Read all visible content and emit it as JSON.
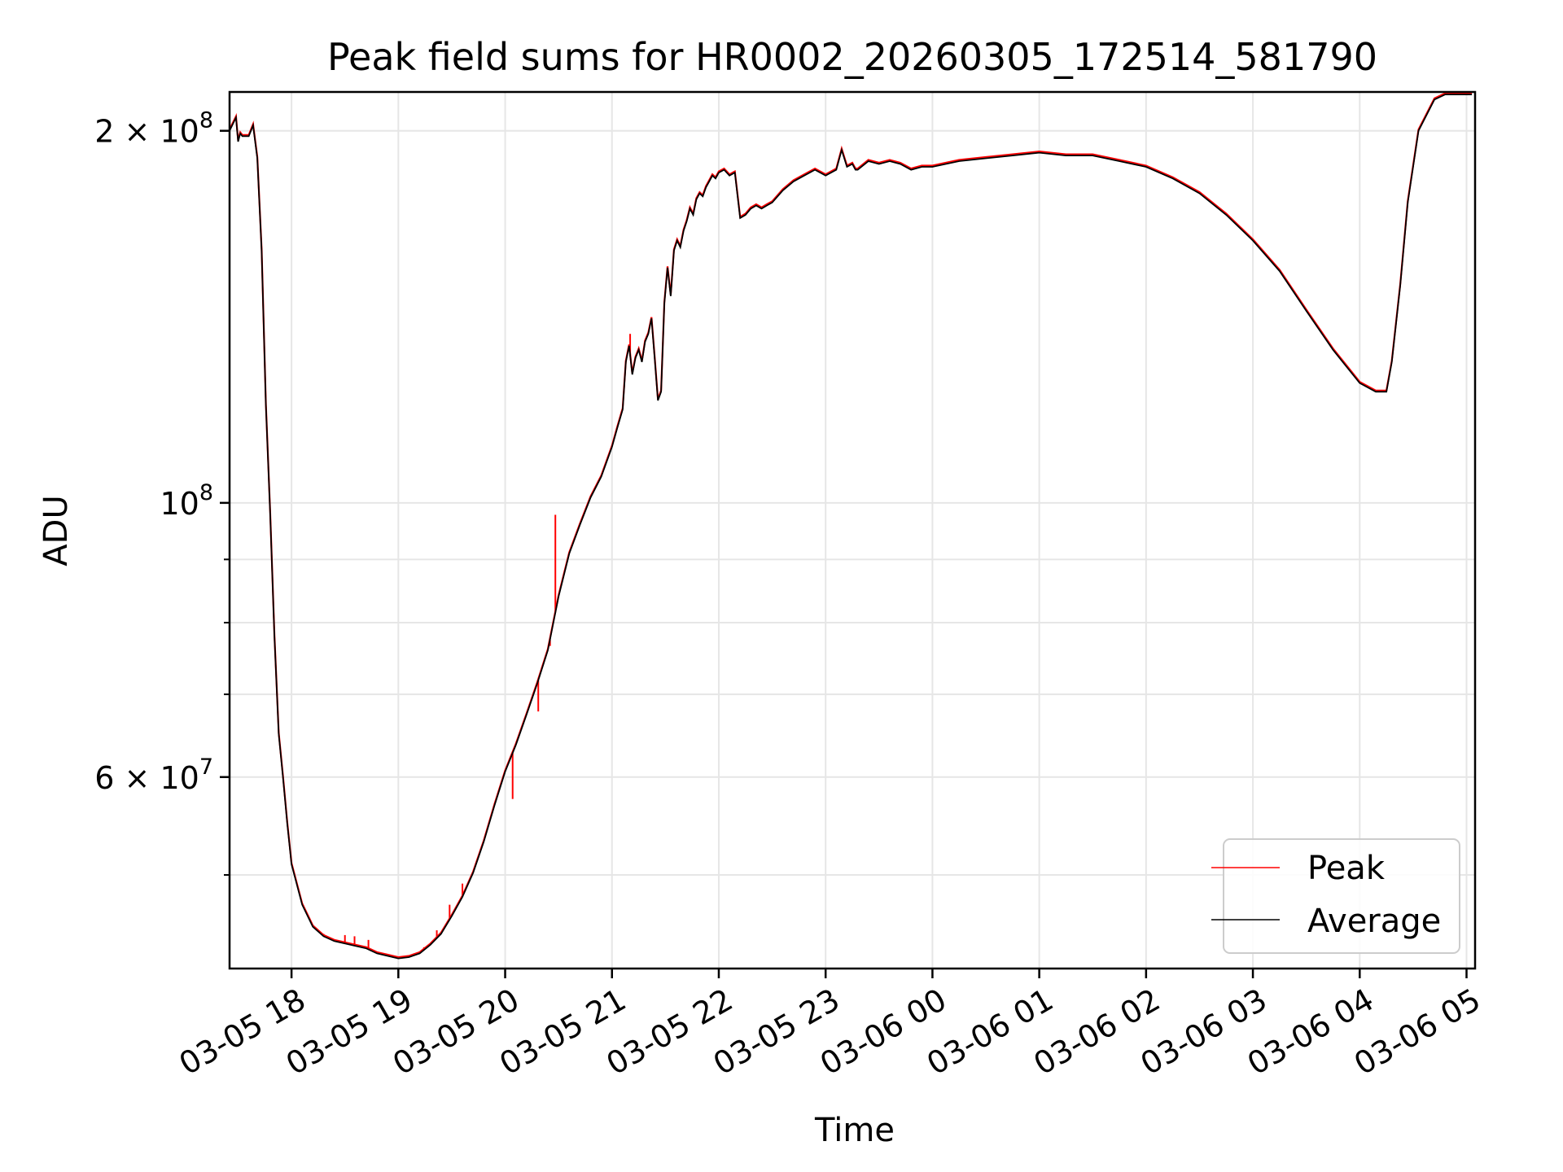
{
  "chart_data": {
    "type": "line",
    "title": "Peak field sums for HR0002_20260305_172514_581790",
    "xlabel": "Time",
    "ylabel": "ADU",
    "yscale": "log",
    "ylim": [
      42000000,
      215000000
    ],
    "xlim_hours": [
      -0.58,
      11.08
    ],
    "x_ref": "03-05 18:00",
    "grid": true,
    "legend_position": "lower-right",
    "xticks": [
      {
        "h": 0,
        "label": "03-05 18"
      },
      {
        "h": 1,
        "label": "03-05 19"
      },
      {
        "h": 2,
        "label": "03-05 20"
      },
      {
        "h": 3,
        "label": "03-05 21"
      },
      {
        "h": 4,
        "label": "03-05 22"
      },
      {
        "h": 5,
        "label": "03-05 23"
      },
      {
        "h": 6,
        "label": "03-06 00"
      },
      {
        "h": 7,
        "label": "03-06 01"
      },
      {
        "h": 8,
        "label": "03-06 02"
      },
      {
        "h": 9,
        "label": "03-06 03"
      },
      {
        "h": 10,
        "label": "03-06 04"
      },
      {
        "h": 11,
        "label": "03-06 05"
      }
    ],
    "yticks_major": [
      {
        "v": 200000000,
        "base": "2 × 10",
        "exp": "8"
      },
      {
        "v": 100000000,
        "base": "10",
        "exp": "8"
      },
      {
        "v": 60000000,
        "base": "6 × 10",
        "exp": "7"
      }
    ],
    "yticks_minor": [
      50000000,
      70000000,
      80000000,
      90000000
    ],
    "series": [
      {
        "name": "Peak",
        "color": "#ff0000",
        "spikes": [
          {
            "h": 0.3,
            "v": 44800000
          },
          {
            "h": 0.5,
            "v": 44700000
          },
          {
            "h": 0.59,
            "v": 44600000
          },
          {
            "h": 0.72,
            "v": 44300000
          },
          {
            "h": 1.24,
            "v": 43700000
          },
          {
            "h": 1.36,
            "v": 45100000
          },
          {
            "h": 1.48,
            "v": 47300000
          },
          {
            "h": 1.6,
            "v": 49200000
          },
          {
            "h": 2.07,
            "v": 57600000
          },
          {
            "h": 2.31,
            "v": 67800000
          },
          {
            "h": 2.42,
            "v": 76600000
          },
          {
            "h": 2.47,
            "v": 97800000
          },
          {
            "h": 3.17,
            "v": 137000000
          }
        ]
      },
      {
        "name": "Average",
        "color": "#000000",
        "x": [
          -0.58,
          -0.52,
          -0.5,
          -0.48,
          -0.46,
          -0.4,
          -0.36,
          -0.32,
          -0.28,
          -0.24,
          -0.2,
          -0.16,
          -0.12,
          -0.08,
          -0.04,
          0.0,
          0.1,
          0.2,
          0.3,
          0.4,
          0.5,
          0.6,
          0.7,
          0.8,
          0.9,
          1.0,
          1.1,
          1.2,
          1.3,
          1.4,
          1.5,
          1.6,
          1.7,
          1.8,
          1.9,
          2.0,
          2.1,
          2.2,
          2.3,
          2.4,
          2.5,
          2.6,
          2.7,
          2.8,
          2.9,
          3.0,
          3.05,
          3.1,
          3.13,
          3.16,
          3.19,
          3.22,
          3.25,
          3.28,
          3.31,
          3.34,
          3.37,
          3.4,
          3.43,
          3.46,
          3.49,
          3.52,
          3.55,
          3.58,
          3.61,
          3.64,
          3.67,
          3.7,
          3.73,
          3.76,
          3.79,
          3.82,
          3.85,
          3.88,
          3.91,
          3.94,
          3.97,
          4.0,
          4.05,
          4.1,
          4.15,
          4.2,
          4.25,
          4.3,
          4.35,
          4.4,
          4.45,
          4.5,
          4.6,
          4.7,
          4.8,
          4.9,
          5.0,
          5.1,
          5.15,
          5.2,
          5.25,
          5.28,
          5.3,
          5.4,
          5.5,
          5.6,
          5.7,
          5.8,
          5.9,
          6.0,
          6.25,
          6.5,
          6.75,
          7.0,
          7.25,
          7.5,
          7.75,
          8.0,
          8.25,
          8.5,
          8.75,
          9.0,
          9.25,
          9.5,
          9.75,
          10.0,
          10.15,
          10.25,
          10.3,
          10.38,
          10.45,
          10.55,
          10.7,
          10.8,
          10.9,
          11.05
        ],
        "y": [
          200000000,
          205000000,
          196000000,
          199000000,
          198000000,
          198000000,
          202000000,
          190000000,
          160000000,
          120000000,
          98000000,
          78000000,
          65000000,
          60000000,
          55000000,
          51000000,
          47300000,
          45400000,
          44600000,
          44200000,
          44000000,
          43800000,
          43600000,
          43200000,
          43000000,
          42800000,
          42900000,
          43200000,
          43900000,
          44800000,
          46300000,
          48000000,
          50200000,
          53200000,
          56900000,
          60600000,
          63700000,
          67400000,
          71400000,
          76000000,
          84000000,
          91000000,
          96000000,
          101000000,
          105000000,
          111000000,
          115000000,
          119000000,
          130000000,
          134000000,
          127000000,
          131000000,
          133000000,
          130000000,
          135000000,
          137000000,
          141000000,
          131000000,
          121000000,
          123000000,
          145000000,
          155000000,
          147000000,
          160000000,
          163000000,
          161000000,
          166000000,
          169000000,
          173000000,
          171000000,
          176000000,
          178000000,
          177000000,
          180000000,
          182000000,
          184000000,
          183000000,
          185000000,
          186000000,
          184000000,
          185000000,
          170000000,
          171000000,
          173000000,
          174000000,
          173000000,
          174000000,
          175000000,
          179000000,
          182000000,
          184000000,
          186000000,
          184000000,
          186000000,
          193000000,
          187000000,
          188000000,
          186000000,
          186000000,
          189000000,
          188000000,
          189000000,
          188000000,
          186000000,
          187000000,
          187000000,
          189000000,
          190000000,
          191000000,
          192000000,
          191000000,
          191000000,
          189000000,
          187000000,
          183000000,
          178000000,
          171000000,
          163000000,
          154000000,
          143000000,
          133000000,
          125000000,
          123000000,
          123000000,
          130000000,
          150000000,
          175000000,
          200000000,
          212000000,
          214000000,
          214000000,
          214000000
        ]
      }
    ]
  }
}
